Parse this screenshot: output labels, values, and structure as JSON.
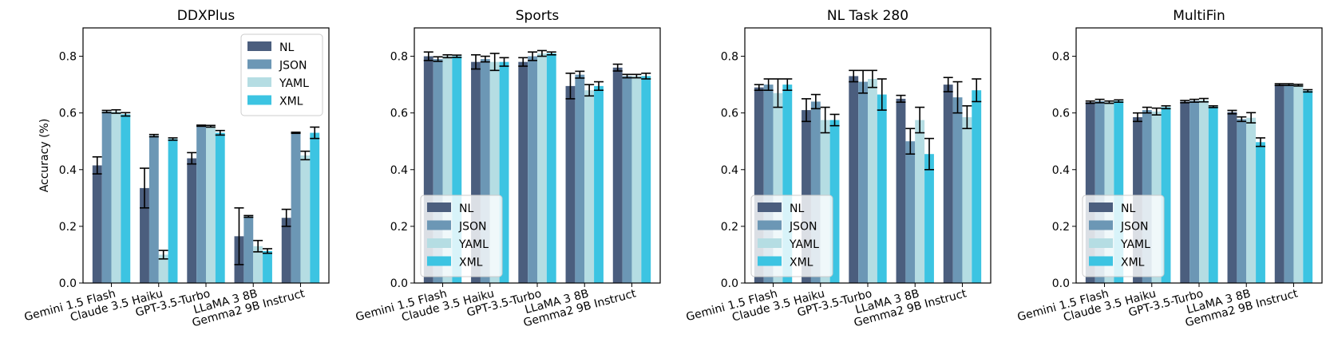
{
  "chart_data": {
    "type": "bar",
    "ylabel": "Accuracy (%)",
    "ylim": [
      0,
      0.9
    ],
    "yticks": [
      "0.0",
      "0.2",
      "0.4",
      "0.6",
      "0.8"
    ],
    "categories": [
      "Gemini 1.5 Flash",
      "Claude 3.5 Haiku",
      "GPT-3.5-Turbo",
      "LLaMA 3 8B",
      "Gemma2 9B Instruct"
    ],
    "series_colors": {
      "NL": "#4b5e7e",
      "JSON": "#6c97b5",
      "YAML": "#b5dde3",
      "XML": "#3cc4e2"
    },
    "panels": [
      {
        "title": "DDXPlus",
        "legend": [
          "NL",
          "JSON",
          "YAML",
          "XML"
        ],
        "legend_position": "top-right",
        "series": [
          {
            "name": "NL",
            "values": [
              0.415,
              0.335,
              0.44,
              0.165,
              0.23
            ],
            "errors": [
              0.03,
              0.07,
              0.02,
              0.1,
              0.03
            ]
          },
          {
            "name": "JSON",
            "values": [
              0.605,
              0.52,
              0.555,
              0.235,
              0.53
            ],
            "errors": [
              0.004,
              0.004,
              0.002,
              0.003,
              0.002
            ]
          },
          {
            "name": "YAML",
            "values": [
              0.605,
              0.1,
              0.553,
              0.13,
              0.45
            ],
            "errors": [
              0.006,
              0.015,
              0.003,
              0.02,
              0.015
            ]
          },
          {
            "name": "XML",
            "values": [
              0.595,
              0.508,
              0.53,
              0.113,
              0.53
            ],
            "errors": [
              0.006,
              0.004,
              0.008,
              0.008,
              0.02
            ]
          }
        ]
      },
      {
        "title": "Sports",
        "legend": [
          "NL",
          "JSON",
          "YAML",
          "XML"
        ],
        "legend_position": "lower-left",
        "series": [
          {
            "name": "NL",
            "values": [
              0.8,
              0.78,
              0.78,
              0.695,
              0.76
            ],
            "errors": [
              0.015,
              0.025,
              0.015,
              0.045,
              0.012
            ]
          },
          {
            "name": "JSON",
            "values": [
              0.79,
              0.79,
              0.8,
              0.735,
              0.73
            ],
            "errors": [
              0.008,
              0.01,
              0.015,
              0.012,
              0.006
            ]
          },
          {
            "name": "YAML",
            "values": [
              0.8,
              0.78,
              0.81,
              0.68,
              0.73
            ],
            "errors": [
              0.005,
              0.03,
              0.01,
              0.02,
              0.006
            ]
          },
          {
            "name": "XML",
            "values": [
              0.8,
              0.78,
              0.81,
              0.695,
              0.73
            ],
            "errors": [
              0.004,
              0.015,
              0.005,
              0.015,
              0.01
            ]
          }
        ]
      },
      {
        "title": "NL Task 280",
        "legend": [
          "NL",
          "JSON",
          "YAML",
          "XML"
        ],
        "legend_position": "lower-left",
        "series": [
          {
            "name": "NL",
            "values": [
              0.69,
              0.61,
              0.73,
              0.65,
              0.7
            ],
            "errors": [
              0.01,
              0.04,
              0.02,
              0.012,
              0.025
            ]
          },
          {
            "name": "JSON",
            "values": [
              0.7,
              0.64,
              0.71,
              0.5,
              0.655
            ],
            "errors": [
              0.02,
              0.025,
              0.04,
              0.045,
              0.055
            ]
          },
          {
            "name": "YAML",
            "values": [
              0.67,
              0.575,
              0.72,
              0.575,
              0.585
            ],
            "errors": [
              0.05,
              0.045,
              0.03,
              0.045,
              0.04
            ]
          },
          {
            "name": "XML",
            "values": [
              0.7,
              0.575,
              0.665,
              0.455,
              0.68
            ],
            "errors": [
              0.02,
              0.02,
              0.055,
              0.055,
              0.04
            ]
          }
        ]
      },
      {
        "title": "MultiFin",
        "legend": [
          "NL",
          "JSON",
          "YAML",
          "XML"
        ],
        "legend_position": "lower-left",
        "series": [
          {
            "name": "NL",
            "values": [
              0.638,
              0.585,
              0.64,
              0.603,
              0.7
            ],
            "errors": [
              0.004,
              0.015,
              0.004,
              0.006,
              0.003
            ]
          },
          {
            "name": "JSON",
            "values": [
              0.642,
              0.61,
              0.643,
              0.578,
              0.7
            ],
            "errors": [
              0.006,
              0.01,
              0.005,
              0.008,
              0.003
            ]
          },
          {
            "name": "YAML",
            "values": [
              0.638,
              0.605,
              0.645,
              0.583,
              0.698
            ],
            "errors": [
              0.004,
              0.012,
              0.006,
              0.018,
              0.003
            ]
          },
          {
            "name": "XML",
            "values": [
              0.642,
              0.62,
              0.622,
              0.497,
              0.678
            ],
            "errors": [
              0.004,
              0.005,
              0.003,
              0.015,
              0.004
            ]
          }
        ]
      }
    ]
  }
}
